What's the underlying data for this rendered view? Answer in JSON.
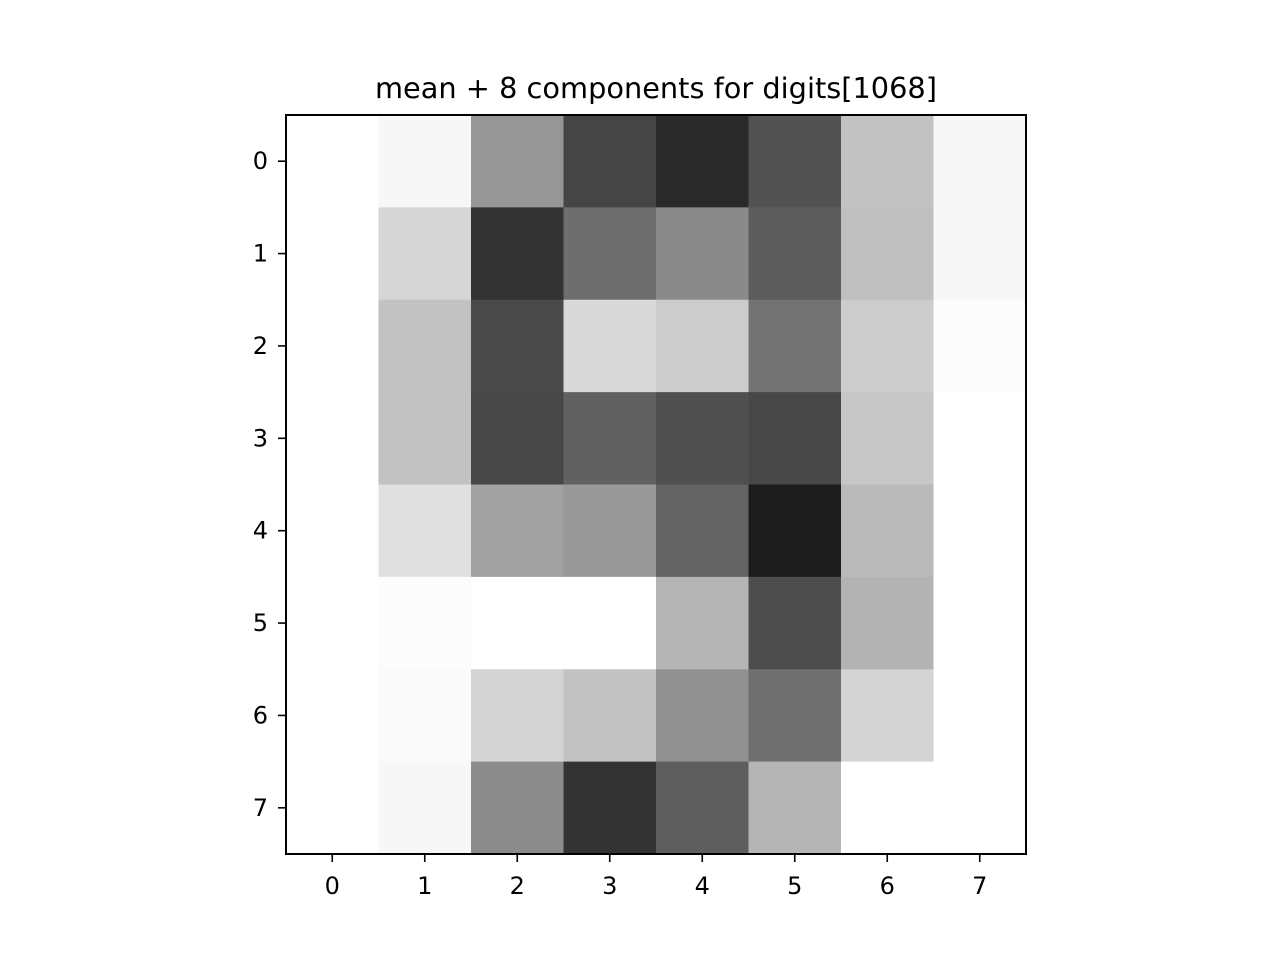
{
  "chart_data": {
    "type": "heatmap",
    "title": "mean + 8 components for digits[1068]",
    "xlabel": "",
    "ylabel": "",
    "colormap": "gray_r",
    "x_ticks": [
      "0",
      "1",
      "2",
      "3",
      "4",
      "5",
      "6",
      "7"
    ],
    "y_ticks": [
      "0",
      "1",
      "2",
      "3",
      "4",
      "5",
      "6",
      "7"
    ],
    "xlim": [
      -0.5,
      7.5
    ],
    "ylim": [
      7.5,
      -0.5
    ],
    "grid": false,
    "legend": "none",
    "values": [
      [
        0.0,
        0.03,
        0.41,
        0.73,
        0.84,
        0.68,
        0.24,
        0.03
      ],
      [
        0.0,
        0.16,
        0.8,
        0.57,
        0.46,
        0.64,
        0.25,
        0.03
      ],
      [
        0.0,
        0.24,
        0.71,
        0.15,
        0.2,
        0.55,
        0.2,
        0.01
      ],
      [
        0.0,
        0.24,
        0.72,
        0.62,
        0.69,
        0.72,
        0.22,
        0.0
      ],
      [
        0.0,
        0.12,
        0.37,
        0.4,
        0.61,
        0.89,
        0.27,
        0.0
      ],
      [
        0.0,
        0.01,
        0.0,
        0.0,
        0.29,
        0.7,
        0.3,
        0.0
      ],
      [
        0.0,
        0.02,
        0.17,
        0.24,
        0.43,
        0.56,
        0.17,
        0.0
      ],
      [
        0.0,
        0.03,
        0.45,
        0.8,
        0.63,
        0.29,
        0.0,
        0.0
      ]
    ]
  }
}
